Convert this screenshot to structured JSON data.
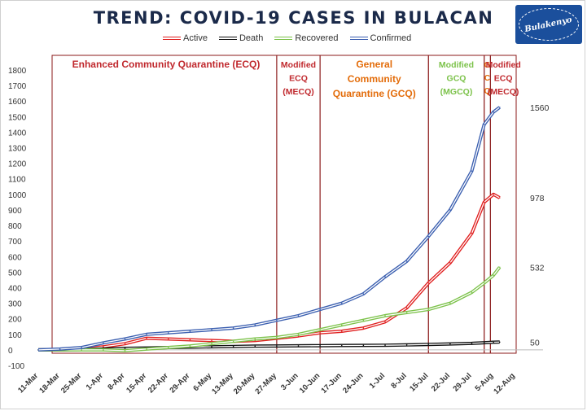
{
  "title": "TREND: COVID-19 CASES IN BULACAN",
  "logo_text": "Bulakenyo",
  "legend": [
    {
      "label": "Active",
      "color": "#e02020"
    },
    {
      "label": "Death",
      "color": "#111111"
    },
    {
      "label": "Recovered",
      "color": "#7cc24a"
    },
    {
      "label": "Confirmed",
      "color": "#3b5fb0"
    }
  ],
  "chart_data": {
    "type": "line",
    "title": "TREND: COVID-19 CASES IN BULACAN",
    "xlabel": "",
    "ylabel": "",
    "ylim": [
      -100,
      1800
    ],
    "y_ticks": [
      -100,
      0,
      100,
      200,
      300,
      400,
      500,
      600,
      700,
      800,
      900,
      1000,
      1100,
      1200,
      1300,
      1400,
      1500,
      1600,
      1700,
      1800
    ],
    "x_ticks": [
      "11-Mar",
      "18-Mar",
      "25-Mar",
      "1-Apr",
      "8-Apr",
      "15-Apr",
      "22-Apr",
      "29-Apr",
      "6-May",
      "13-May",
      "20-May",
      "27-May",
      "3-Jun",
      "10-Jun",
      "17-Jun",
      "24-Jun",
      "1-Jul",
      "8-Jul",
      "15-Jul",
      "22-Jul",
      "29-Jul",
      "5-Aug",
      "12-Aug"
    ],
    "x": [
      "11-Mar",
      "18-Mar",
      "25-Mar",
      "1-Apr",
      "8-Apr",
      "15-Apr",
      "22-Apr",
      "29-Apr",
      "6-May",
      "13-May",
      "20-May",
      "27-May",
      "3-Jun",
      "10-Jun",
      "17-Jun",
      "24-Jun",
      "1-Jul",
      "8-Jul",
      "15-Jul",
      "22-Jul",
      "29-Jul",
      "2-Aug",
      "5-Aug",
      "7-Aug"
    ],
    "series": [
      {
        "name": "Active",
        "color": "#e02020",
        "values": [
          0,
          0,
          5,
          20,
          40,
          75,
          70,
          65,
          60,
          55,
          60,
          75,
          90,
          110,
          120,
          140,
          180,
          270,
          430,
          560,
          750,
          950,
          1000,
          978
        ],
        "end_label": "978"
      },
      {
        "name": "Death",
        "color": "#111111",
        "values": [
          0,
          0,
          2,
          5,
          10,
          12,
          15,
          18,
          20,
          22,
          24,
          25,
          26,
          27,
          28,
          29,
          30,
          32,
          35,
          38,
          42,
          46,
          49,
          50
        ],
        "end_label": "50"
      },
      {
        "name": "Recovered",
        "color": "#7cc24a",
        "values": [
          0,
          0,
          0,
          0,
          -5,
          5,
          15,
          25,
          40,
          55,
          70,
          80,
          100,
          130,
          160,
          190,
          220,
          240,
          260,
          300,
          370,
          430,
          480,
          532
        ],
        "end_label": "532"
      },
      {
        "name": "Confirmed",
        "color": "#3b5fb0",
        "values": [
          0,
          5,
          15,
          45,
          70,
          100,
          110,
          120,
          130,
          140,
          160,
          190,
          220,
          260,
          300,
          360,
          470,
          570,
          730,
          900,
          1150,
          1450,
          1530,
          1560
        ],
        "end_label": "1560"
      }
    ],
    "phases": [
      {
        "label": [
          "Enhanced Community Quarantine (ECQ)"
        ],
        "color": "#c0282d",
        "start": "11-Mar",
        "end": "27-May"
      },
      {
        "label": [
          "Modified",
          "ECQ",
          "(MECQ)"
        ],
        "color": "#c0282d",
        "start": "27-May",
        "end": "10-Jun"
      },
      {
        "label": [
          "General",
          "Community",
          "Quarantine (GCQ)"
        ],
        "color": "#e36c0a",
        "start": "10-Jun",
        "end": "15-Jul"
      },
      {
        "label": [
          "Modified",
          "GCQ",
          "(MGCQ)"
        ],
        "color": "#7cc24a",
        "start": "15-Jul",
        "end": "2-Aug"
      },
      {
        "label": [
          "G",
          "C",
          "Q"
        ],
        "color": "#e36c0a",
        "start": "2-Aug",
        "end": "4-Aug"
      },
      {
        "label": [
          "Modified",
          "ECQ",
          "(MECQ)"
        ],
        "color": "#c0282d",
        "start": "4-Aug",
        "end": "12-Aug"
      }
    ],
    "grid": false,
    "legend_position": "top"
  }
}
